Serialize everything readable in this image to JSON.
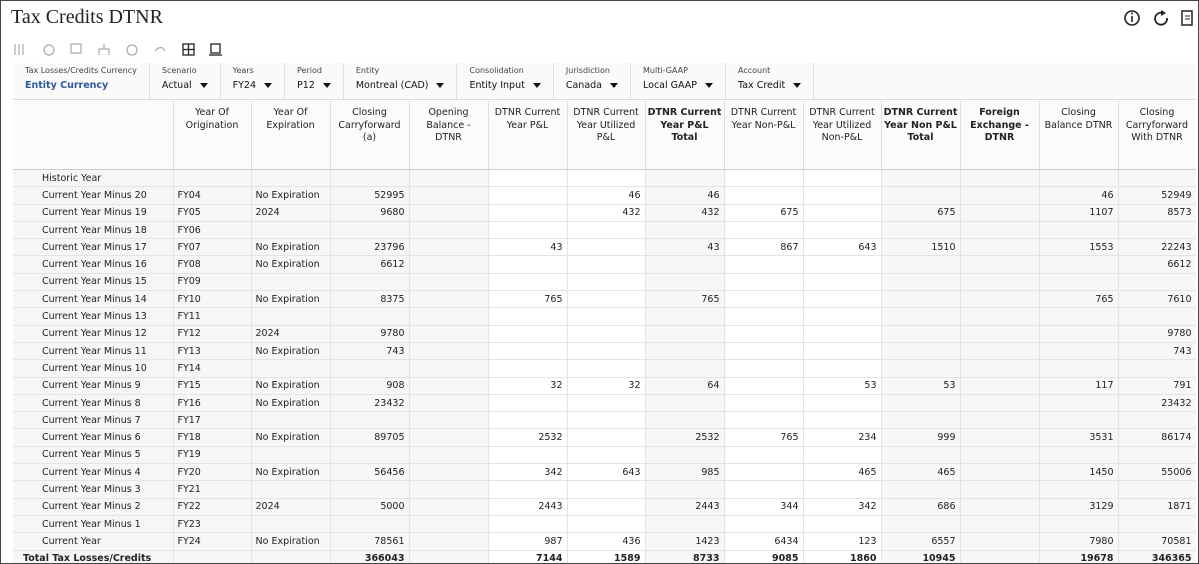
{
  "header": {
    "title": "Tax Credits DTNR"
  },
  "pov": [
    {
      "label": "Tax Losses/Credits Currency",
      "value": "Entity Currency"
    },
    {
      "label": "Scenario",
      "value": "Actual"
    },
    {
      "label": "Years",
      "value": "FY24"
    },
    {
      "label": "Period",
      "value": "P12"
    },
    {
      "label": "Entity",
      "value": "Montreal (CAD)"
    },
    {
      "label": "Consolidation",
      "value": "Entity Input"
    },
    {
      "label": "Jurisdiction",
      "value": "Canada"
    },
    {
      "label": "Multi-GAAP",
      "value": "Local GAAP"
    },
    {
      "label": "Account",
      "value": "Tax Credit"
    }
  ],
  "table": {
    "columns": [
      "Year Of Origination",
      "Year Of Expiration",
      "Closing Carryforward (a)",
      "Opening Balance - DTNR",
      "DTNR Current Year P&L",
      "DTNR Current Year Utilized P&L",
      "DTNR Current Year P&L Total",
      "DTNR Current Year Non-P&L",
      "DTNR Current Year Utilized Non-P&L",
      "DTNR Current Year Non P&L Total",
      "Foreign Exchange - DTNR",
      "Closing Balance DTNR",
      "Closing Carryforward With DTNR"
    ],
    "rows": [
      {
        "label": "Historic Year",
        "cells": [
          null,
          null,
          null,
          null,
          null,
          null,
          null,
          null,
          null,
          null,
          null,
          null,
          null
        ]
      },
      {
        "label": "Current Year Minus 20",
        "cells": [
          "FY04",
          "No Expiration",
          52995,
          null,
          null,
          46,
          46,
          null,
          null,
          null,
          null,
          46,
          52949
        ]
      },
      {
        "label": "Current Year Minus 19",
        "cells": [
          "FY05",
          "2024",
          9680,
          null,
          null,
          432,
          432,
          675,
          null,
          675,
          null,
          1107,
          8573
        ]
      },
      {
        "label": "Current Year Minus 18",
        "cells": [
          "FY06",
          null,
          null,
          null,
          null,
          null,
          null,
          null,
          null,
          null,
          null,
          null,
          null
        ]
      },
      {
        "label": "Current Year Minus 17",
        "cells": [
          "FY07",
          "No Expiration",
          23796,
          null,
          43,
          null,
          43,
          867,
          643,
          1510,
          null,
          1553,
          22243
        ]
      },
      {
        "label": "Current Year Minus 16",
        "cells": [
          "FY08",
          "No Expiration",
          6612,
          null,
          null,
          null,
          null,
          null,
          null,
          null,
          null,
          null,
          6612
        ]
      },
      {
        "label": "Current Year Minus 15",
        "cells": [
          "FY09",
          null,
          null,
          null,
          null,
          null,
          null,
          null,
          null,
          null,
          null,
          null,
          null
        ]
      },
      {
        "label": "Current Year Minus 14",
        "cells": [
          "FY10",
          "No Expiration",
          8375,
          null,
          765,
          null,
          765,
          null,
          null,
          null,
          null,
          765,
          7610
        ]
      },
      {
        "label": "Current Year Minus 13",
        "cells": [
          "FY11",
          null,
          null,
          null,
          null,
          null,
          null,
          null,
          null,
          null,
          null,
          null,
          null
        ]
      },
      {
        "label": "Current Year Minus 12",
        "cells": [
          "FY12",
          "2024",
          9780,
          null,
          null,
          null,
          null,
          null,
          null,
          null,
          null,
          null,
          9780
        ]
      },
      {
        "label": "Current Year Minus 11",
        "cells": [
          "FY13",
          "No Expiration",
          743,
          null,
          null,
          null,
          null,
          null,
          null,
          null,
          null,
          null,
          743
        ]
      },
      {
        "label": "Current Year Minus 10",
        "cells": [
          "FY14",
          null,
          null,
          null,
          null,
          null,
          null,
          null,
          null,
          null,
          null,
          null,
          null
        ]
      },
      {
        "label": "Current Year Minus 9",
        "cells": [
          "FY15",
          "No Expiration",
          908,
          null,
          32,
          32,
          64,
          null,
          53,
          53,
          null,
          117,
          791
        ]
      },
      {
        "label": "Current Year Minus 8",
        "cells": [
          "FY16",
          "No Expiration",
          23432,
          null,
          null,
          null,
          null,
          null,
          null,
          null,
          null,
          null,
          23432
        ]
      },
      {
        "label": "Current Year Minus 7",
        "cells": [
          "FY17",
          null,
          null,
          null,
          null,
          null,
          null,
          null,
          null,
          null,
          null,
          null,
          null
        ]
      },
      {
        "label": "Current Year Minus 6",
        "cells": [
          "FY18",
          "No Expiration",
          89705,
          null,
          2532,
          null,
          2532,
          765,
          234,
          999,
          null,
          3531,
          86174
        ]
      },
      {
        "label": "Current Year Minus 5",
        "cells": [
          "FY19",
          null,
          null,
          null,
          null,
          null,
          null,
          null,
          null,
          null,
          null,
          null,
          null
        ]
      },
      {
        "label": "Current Year Minus 4",
        "cells": [
          "FY20",
          "No Expiration",
          56456,
          null,
          342,
          643,
          985,
          null,
          465,
          465,
          null,
          1450,
          55006
        ]
      },
      {
        "label": "Current Year Minus 3",
        "cells": [
          "FY21",
          null,
          null,
          null,
          null,
          null,
          null,
          null,
          null,
          null,
          null,
          null,
          null
        ]
      },
      {
        "label": "Current Year Minus 2",
        "cells": [
          "FY22",
          "2024",
          5000,
          null,
          2443,
          null,
          2443,
          344,
          342,
          686,
          null,
          3129,
          1871
        ]
      },
      {
        "label": "Current Year Minus 1",
        "cells": [
          "FY23",
          null,
          null,
          null,
          null,
          null,
          null,
          null,
          null,
          null,
          null,
          null,
          null
        ]
      },
      {
        "label": "Current Year",
        "cells": [
          "FY24",
          "No Expiration",
          78561,
          null,
          987,
          436,
          1423,
          6434,
          123,
          6557,
          null,
          7980,
          70581
        ]
      }
    ],
    "total": {
      "label": "Total Tax Losses/Credits",
      "cells": [
        null,
        null,
        366043,
        null,
        7144,
        1589,
        8733,
        9085,
        1860,
        10945,
        null,
        19678,
        346365
      ]
    }
  }
}
